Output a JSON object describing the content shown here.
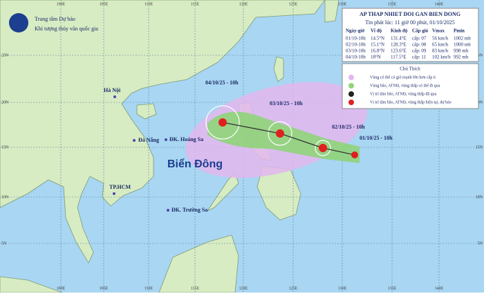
{
  "header": {
    "org_line1": "Trung tâm Dự báo",
    "org_line2": "Khí tượng thủy văn quốc gia"
  },
  "info": {
    "title": "AP THAP NHIET DOI GAN BIEN DONG",
    "issued": "Tin phát lúc: 11 giờ 00 phút, 01/10/2025",
    "columns": [
      "Ngày-giờ",
      "Vĩ độ",
      "Kinh độ",
      "Cấp gió",
      "Vmax",
      "Pmin"
    ],
    "rows": [
      [
        "01/10-10h",
        "14.5°N",
        "131.4°E",
        "cấp: 07",
        "56 km/h",
        "1002 mb"
      ],
      [
        "02/10-10h",
        "15.1°N",
        "128.3°E",
        "cấp: 08",
        "65 km/h",
        "1000 mb"
      ],
      [
        "03/10-10h",
        "16.8°N",
        "123.6°E",
        "cấp: 09",
        "83 km/h",
        "998 mb"
      ],
      [
        "04/10-10h",
        "18°N",
        "117.5°E",
        "cấp: 11",
        "102 km/h",
        "992 mb"
      ]
    ]
  },
  "legend": {
    "title": "Chú Thích",
    "items": [
      "Vùng có thể có gió mạnh lớn hơn cấp 6",
      "Vùng bão, ATNĐ, vùng thấp có thể đi qua",
      "Vị trí tâm bão, ATNĐ, vùng thấp đã qua",
      "Vị trí tâm bão, ATNĐ, vùng thấp hiện tại, dự báo"
    ]
  },
  "places": [
    "Hà Nội",
    "Đà Nẵng",
    "ĐK. Hoàng Sa",
    "TP.HCM",
    "ĐK. Trường Sa",
    "Biển Đông"
  ],
  "track_labels": [
    "04/10/25 - 10h",
    "03/10/25 - 10h",
    "02/10/25 - 10h",
    "01/10/25 - 10h"
  ],
  "grid": {
    "lon": [
      "100E",
      "105E",
      "110E",
      "115E",
      "120E",
      "125E",
      "130E",
      "135E",
      "140E"
    ],
    "lat": [
      "25N",
      "20N",
      "15N",
      "10N",
      "5N"
    ]
  }
}
